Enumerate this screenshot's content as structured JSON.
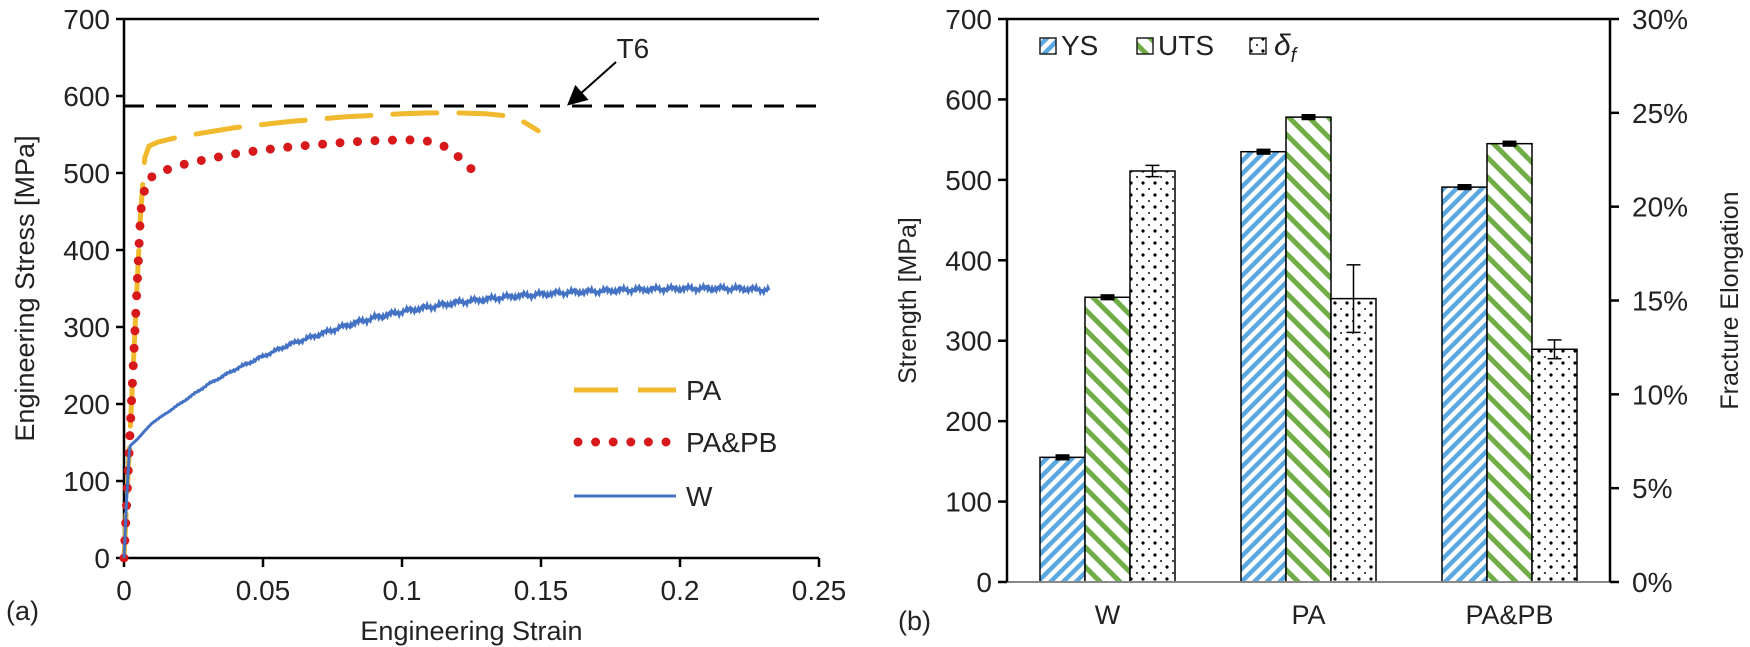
{
  "chart_data": [
    {
      "type": "line",
      "panel_label": "(a)",
      "title": "",
      "xlabel": "Engineering Strain",
      "ylabel": "Engineering Stress [MPa]",
      "xlim": [
        0,
        0.25
      ],
      "ylim": [
        0,
        700
      ],
      "xticks": [
        "0",
        "0.05",
        "0.1",
        "0.15",
        "0.2",
        "0.25"
      ],
      "xtick_values": [
        0,
        0.05,
        0.1,
        0.15,
        0.2,
        0.25
      ],
      "yticks": [
        "0",
        "100",
        "200",
        "300",
        "400",
        "500",
        "600",
        "700"
      ],
      "ytick_values": [
        0,
        100,
        200,
        300,
        400,
        500,
        600,
        700
      ],
      "grid": false,
      "legend_position": "bottom-right",
      "reference_line": {
        "label": "T6",
        "y": 587,
        "color": "#000000",
        "style": "dashed"
      },
      "series": [
        {
          "name": "PA",
          "color": "#F0B92E",
          "style": "dashed",
          "x": [
            0,
            0.002,
            0.004,
            0.006,
            0.0075,
            0.009,
            0.012,
            0.02,
            0.03,
            0.04,
            0.05,
            0.06,
            0.07,
            0.08,
            0.09,
            0.1,
            0.11,
            0.12,
            0.13,
            0.138,
            0.144,
            0.149
          ],
          "y": [
            0,
            150,
            300,
            450,
            520,
            535,
            540,
            547,
            553,
            559,
            563,
            567,
            570,
            573,
            575,
            577,
            578,
            578,
            577,
            574,
            566,
            555
          ]
        },
        {
          "name": "PA&PB",
          "color": "#D7191C",
          "style": "dotted",
          "x": [
            0,
            0.002,
            0.004,
            0.006,
            0.008,
            0.012,
            0.02,
            0.03,
            0.04,
            0.05,
            0.06,
            0.07,
            0.08,
            0.09,
            0.1,
            0.105,
            0.11,
            0.115,
            0.12,
            0.125
          ],
          "y": [
            0,
            150,
            300,
            450,
            490,
            500,
            510,
            518,
            525,
            530,
            534,
            537,
            540,
            542,
            543,
            543,
            541,
            535,
            522,
            505
          ]
        },
        {
          "name": "W",
          "color": "#4472C4",
          "style": "solid",
          "x": [
            0,
            0.001,
            0.002,
            0.005,
            0.01,
            0.02,
            0.03,
            0.04,
            0.05,
            0.06,
            0.07,
            0.08,
            0.09,
            0.1,
            0.12,
            0.14,
            0.16,
            0.18,
            0.2,
            0.22,
            0.232
          ],
          "y": [
            0,
            80,
            145,
            155,
            175,
            200,
            225,
            245,
            262,
            278,
            290,
            302,
            312,
            320,
            332,
            340,
            345,
            348,
            350,
            350,
            348
          ]
        }
      ]
    },
    {
      "type": "bar",
      "panel_label": "(b)",
      "title": "",
      "xlabel": "",
      "ylabel": "Strength [MPa]",
      "y2label": "Fracture Elongation",
      "ylim": [
        0,
        700
      ],
      "y2lim": [
        0,
        30
      ],
      "yticks": [
        "0",
        "100",
        "200",
        "300",
        "400",
        "500",
        "600",
        "700"
      ],
      "ytick_values": [
        0,
        100,
        200,
        300,
        400,
        500,
        600,
        700
      ],
      "y2ticks": [
        "0%",
        "5%",
        "10%",
        "15%",
        "20%",
        "25%",
        "30%"
      ],
      "y2tick_values": [
        0,
        5,
        10,
        15,
        20,
        25,
        30
      ],
      "grid": false,
      "legend_position": "top-left",
      "categories": [
        "W",
        "PA",
        "PA&PB"
      ],
      "series": [
        {
          "name": "YS",
          "axis": "left",
          "color": "#5BA8E0",
          "pattern": "diagonal-down",
          "values": [
            155,
            535,
            491
          ],
          "errors": [
            2,
            2,
            2
          ]
        },
        {
          "name": "UTS",
          "axis": "left",
          "color": "#70AD47",
          "pattern": "diagonal-up",
          "values": [
            354,
            578,
            545
          ],
          "errors": [
            2,
            2,
            2
          ]
        },
        {
          "name": "δf",
          "axis": "right",
          "color": "#000000",
          "pattern": "dots",
          "values": [
            21.9,
            15.1,
            12.4
          ],
          "errors": [
            0.3,
            1.8,
            0.5
          ]
        }
      ]
    }
  ]
}
